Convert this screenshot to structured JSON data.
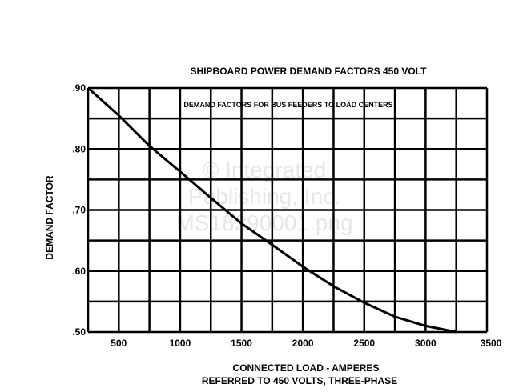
{
  "chart_data": {
    "type": "line",
    "title": "SHIPBOARD POWER DEMAND FACTORS 450 VOLT",
    "annotation": "DEMAND FACTORS FOR BUS FEEDERS TO LOAD CENTERS",
    "xlabel": "CONNECTED LOAD - AMPERES",
    "xlabel2": "REFERRED TO 450 VOLTS, THREE-PHASE",
    "ylabel": "DEMAND FACTOR",
    "xlim": [
      250,
      3500
    ],
    "ylim": [
      0.5,
      0.9
    ],
    "grid": true,
    "x_ticks": [
      500,
      1000,
      1500,
      2000,
      2500,
      3000,
      3500
    ],
    "x_tick_labels": [
      "500",
      "1000",
      "1500",
      "2000",
      "2500",
      "3000",
      "3500"
    ],
    "y_ticks": [
      0.5,
      0.6,
      0.7,
      0.8,
      0.9
    ],
    "y_tick_labels": [
      ".50",
      ".60",
      ".70",
      ".80",
      ".90"
    ],
    "series": [
      {
        "x": [
          250,
          500,
          750,
          1000,
          1250,
          1500,
          1750,
          2000,
          2250,
          2500,
          2750,
          3000,
          3250
        ],
        "y": [
          0.9,
          0.855,
          0.805,
          0.763,
          0.72,
          0.678,
          0.643,
          0.607,
          0.575,
          0.548,
          0.525,
          0.51,
          0.5
        ]
      }
    ],
    "line_color": "#000000"
  },
  "watermark": [
    "© Integrated",
    "Publishing, Inc.",
    "MS18290001.png"
  ]
}
